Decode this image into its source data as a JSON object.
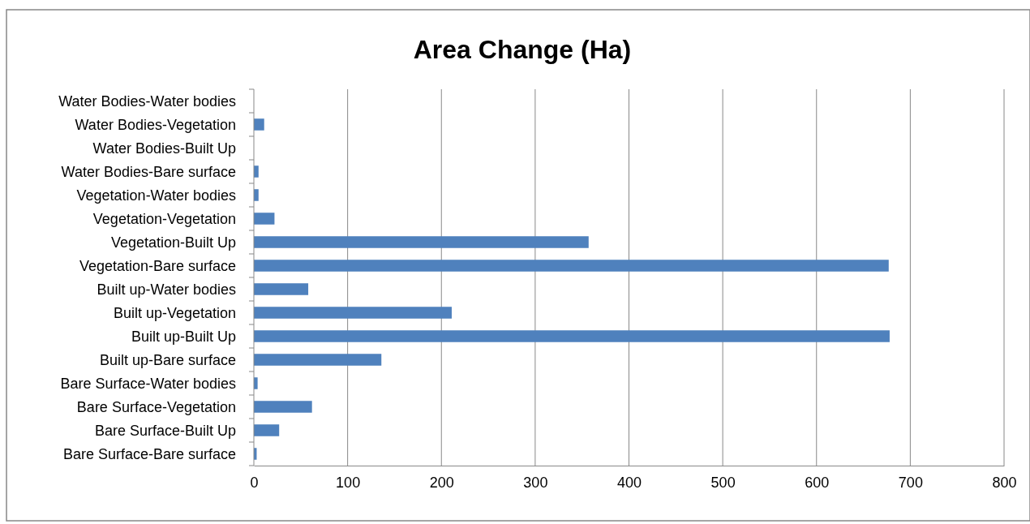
{
  "chart_data": {
    "type": "bar",
    "orientation": "horizontal",
    "title": "Area Change (Ha)",
    "categories": [
      "Water Bodies-Water bodies",
      "Water Bodies-Vegetation",
      "Water Bodies-Built Up",
      "Water Bodies-Bare surface",
      "Vegetation-Water bodies",
      "Vegetation-Vegetation",
      "Vegetation-Built Up",
      "Vegetation-Bare surface",
      "Built up-Water bodies",
      "Built up-Vegetation",
      "Built up-Built Up",
      "Built up-Bare surface",
      "Bare Surface-Water bodies",
      "Bare Surface-Vegetation",
      "Bare Surface-Built Up",
      "Bare Surface-Bare surface"
    ],
    "values": [
      0,
      11,
      0,
      5,
      5,
      22,
      357,
      677,
      58,
      211,
      678,
      136,
      4,
      62,
      27,
      3
    ],
    "color": "#4f81bd",
    "xlim": [
      0,
      800
    ],
    "xticks": [
      0,
      100,
      200,
      300,
      400,
      500,
      600,
      700,
      800
    ],
    "grid": "x"
  }
}
